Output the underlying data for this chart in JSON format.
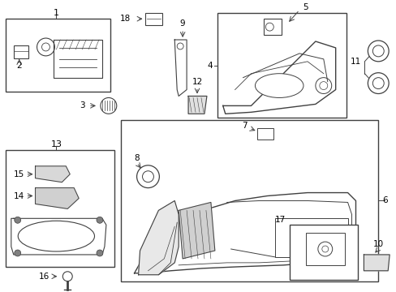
{
  "bg_color": "#ffffff",
  "line_color": "#404040",
  "label_color": "#000000",
  "figsize": [
    4.89,
    3.6
  ],
  "dpi": 100
}
